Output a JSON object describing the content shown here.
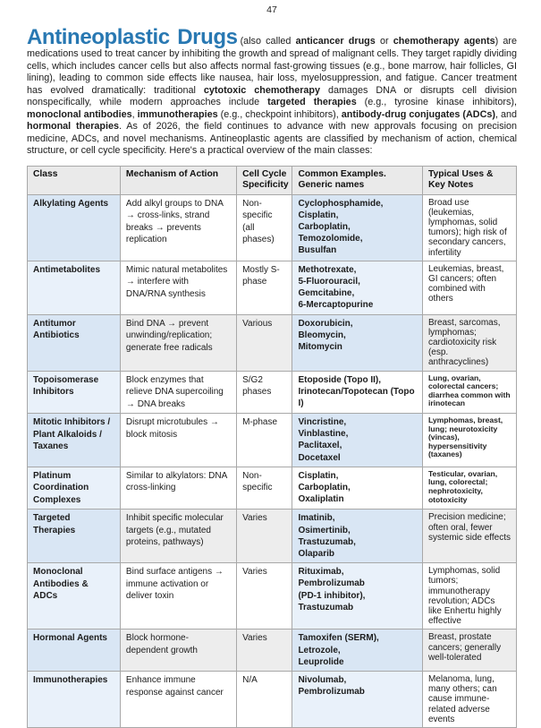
{
  "page": {
    "number": "47"
  },
  "colors": {
    "title": "#2878b2",
    "table_border": "#a8a8a8",
    "header_bg": "#eaeaea",
    "blue": "#d9e6f4",
    "ltblue": "#e9f1fa",
    "gray": "#ededed",
    "white": "#ffffff"
  },
  "intro": {
    "title": "Antineoplastic Drugs",
    "segments": [
      {
        "text": "(also called ",
        "bold": false
      },
      {
        "text": "anticancer drugs",
        "bold": true
      },
      {
        "text": " or ",
        "bold": false
      },
      {
        "text": "chemotherapy agents",
        "bold": true
      },
      {
        "text": ") are medications used to treat cancer by inhibiting the growth and spread of malignant cells. They target rapidly dividing cells, which includes cancer cells but also affects normal fast-growing tissues (e.g., bone marrow, hair follicles, GI lining), leading to common side effects like nausea, hair loss, myelosuppression, and fatigue. Cancer treatment has evolved dramatically: traditional ",
        "bold": false
      },
      {
        "text": "cytotoxic chemotherapy",
        "bold": true
      },
      {
        "text": " damages DNA or disrupts cell division nonspecifically, while modern approaches include ",
        "bold": false
      },
      {
        "text": "targeted therapies",
        "bold": true
      },
      {
        "text": " (e.g., tyrosine kinase inhibitors), ",
        "bold": false
      },
      {
        "text": "monoclonal antibodies",
        "bold": true
      },
      {
        "text": ", ",
        "bold": false
      },
      {
        "text": "immunotherapies",
        "bold": true
      },
      {
        "text": " (e.g., checkpoint inhibitors), ",
        "bold": false
      },
      {
        "text": "antibody-drug conjugates (ADCs)",
        "bold": true
      },
      {
        "text": ", and ",
        "bold": false
      },
      {
        "text": "hormonal therapies",
        "bold": true
      },
      {
        "text": ". As of 2026, the field continues to advance with new approvals focusing on precision medicine, ADCs, and novel mechanisms. Antineoplastic agents are classified by mechanism of action, chemical structure, or cell cycle specificity. Here's a practical overview of the main classes:",
        "bold": false
      }
    ]
  },
  "table": {
    "headers": [
      "Class",
      "Mechanism of Action",
      "Cell Cycle Specificity",
      "Common Examples. Generic names",
      "Typical Uses & Key Notes"
    ],
    "rows": [
      {
        "class_name": "Alkylating Agents",
        "mechanism": "Add alkyl groups to DNA → cross-links, strand breaks → prevents replication",
        "cell_cycle": "Non-specific (all phases)",
        "examples": [
          "Cyclophosphamide,",
          "Cisplatin,",
          "Carboplatin,",
          "Temozolomide,",
          "Busulfan"
        ],
        "uses": "Broad use (leukemias, lymphomas, solid tumors); high risk of secondary cancers, infertility",
        "small_uses": false,
        "shading": [
          "blue",
          "white",
          "white",
          "blue",
          "white"
        ]
      },
      {
        "class_name": "Antimetabolites",
        "mechanism": "Mimic natural metabolites → interfere with DNA/RNA synthesis",
        "cell_cycle": "Mostly S-phase",
        "examples": [
          "Methotrexate,",
          "5-Fluorouracil,",
          "Gemcitabine,",
          "6-Mercaptopurine"
        ],
        "uses": "Leukemias, breast, GI cancers; often combined with others",
        "small_uses": false,
        "shading": [
          "ltblue",
          "white",
          "white",
          "ltblue",
          "white"
        ]
      },
      {
        "class_name": "Antitumor Antibiotics",
        "mechanism": "Bind DNA → prevent unwinding/replication; generate free radicals",
        "cell_cycle": "Various",
        "examples": [
          "Doxorubicin,",
          "Bleomycin,",
          "Mitomycin"
        ],
        "uses": "Breast, sarcomas, lymphomas; cardiotoxicity risk (esp. anthracyclines)",
        "small_uses": false,
        "shading": [
          "blue",
          "gray",
          "gray",
          "blue",
          "gray"
        ]
      },
      {
        "class_name": "Topoisomerase Inhibitors",
        "mechanism": "Block enzymes that relieve DNA supercoiling → DNA breaks",
        "cell_cycle": "S/G2 phases",
        "examples": [
          "Etoposide (Topo II),",
          "Irinotecan/Topotecan (Topo I)"
        ],
        "uses": "Lung, ovarian, colorectal cancers; diarrhea common with irinotecan",
        "small_uses": true,
        "shading": [
          "ltblue",
          "white",
          "white",
          "white",
          "white"
        ]
      },
      {
        "class_name": "Mitotic Inhibitors / Plant Alkaloids / Taxanes",
        "mechanism": "Disrupt microtubules → block mitosis",
        "cell_cycle": "M-phase",
        "examples": [
          "Vincristine,",
          "Vinblastine,",
          "Paclitaxel,",
          "Docetaxel"
        ],
        "uses": "Lymphomas, breast, lung; neurotoxicity (vincas), hypersensitivity (taxanes)",
        "small_uses": true,
        "shading": [
          "blue",
          "white",
          "white",
          "blue",
          "white"
        ]
      },
      {
        "class_name": "Platinum Coordination Complexes",
        "mechanism": "Similar to alkylators: DNA cross-linking",
        "cell_cycle": "Non-specific",
        "examples": [
          "Cisplatin,",
          "Carboplatin,",
          "Oxaliplatin"
        ],
        "uses": "Testicular, ovarian, lung, colorectal; nephrotoxicity, ototoxicity",
        "small_uses": true,
        "shading": [
          "ltblue",
          "white",
          "white",
          "white",
          "white"
        ]
      },
      {
        "class_name": "Targeted Therapies",
        "mechanism": "Inhibit specific molecular targets (e.g., mutated proteins, pathways)",
        "cell_cycle": "Varies",
        "examples": [
          "Imatinib,",
          "Osimertinib,",
          "Trastuzumab,",
          "Olaparib"
        ],
        "uses": "Precision medicine; often oral, fewer systemic side effects",
        "small_uses": false,
        "shading": [
          "blue",
          "gray",
          "gray",
          "blue",
          "gray"
        ]
      },
      {
        "class_name": "Monoclonal Antibodies & ADCs",
        "mechanism": "Bind surface antigens → immune activation or deliver toxin",
        "cell_cycle": "Varies",
        "examples": [
          "Rituximab,",
          "Pembrolizumab",
          "(PD-1 inhibitor),",
          "Trastuzumab"
        ],
        "uses": "Lymphomas, solid tumors; immunotherapy revolution; ADCs like Enhertu highly effective",
        "small_uses": false,
        "shading": [
          "ltblue",
          "white",
          "white",
          "ltblue",
          "white"
        ]
      },
      {
        "class_name": "Hormonal Agents",
        "mechanism": "Block hormone-dependent growth",
        "cell_cycle": "Varies",
        "examples": [
          "Tamoxifen (SERM),",
          "Letrozole,",
          "Leuprolide"
        ],
        "uses": "Breast, prostate cancers; generally well-tolerated",
        "small_uses": false,
        "shading": [
          "blue",
          "gray",
          "gray",
          "blue",
          "gray"
        ]
      },
      {
        "class_name": "Immunotherapies",
        "mechanism": "Enhance immune response against cancer",
        "cell_cycle": "N/A",
        "examples": [
          "Nivolumab,",
          "Pembrolizumab"
        ],
        "uses": "Melanoma, lung, many others; can cause immune-related adverse events",
        "small_uses": false,
        "shading": [
          "ltblue",
          "white",
          "white",
          "ltblue",
          "white"
        ]
      }
    ]
  }
}
